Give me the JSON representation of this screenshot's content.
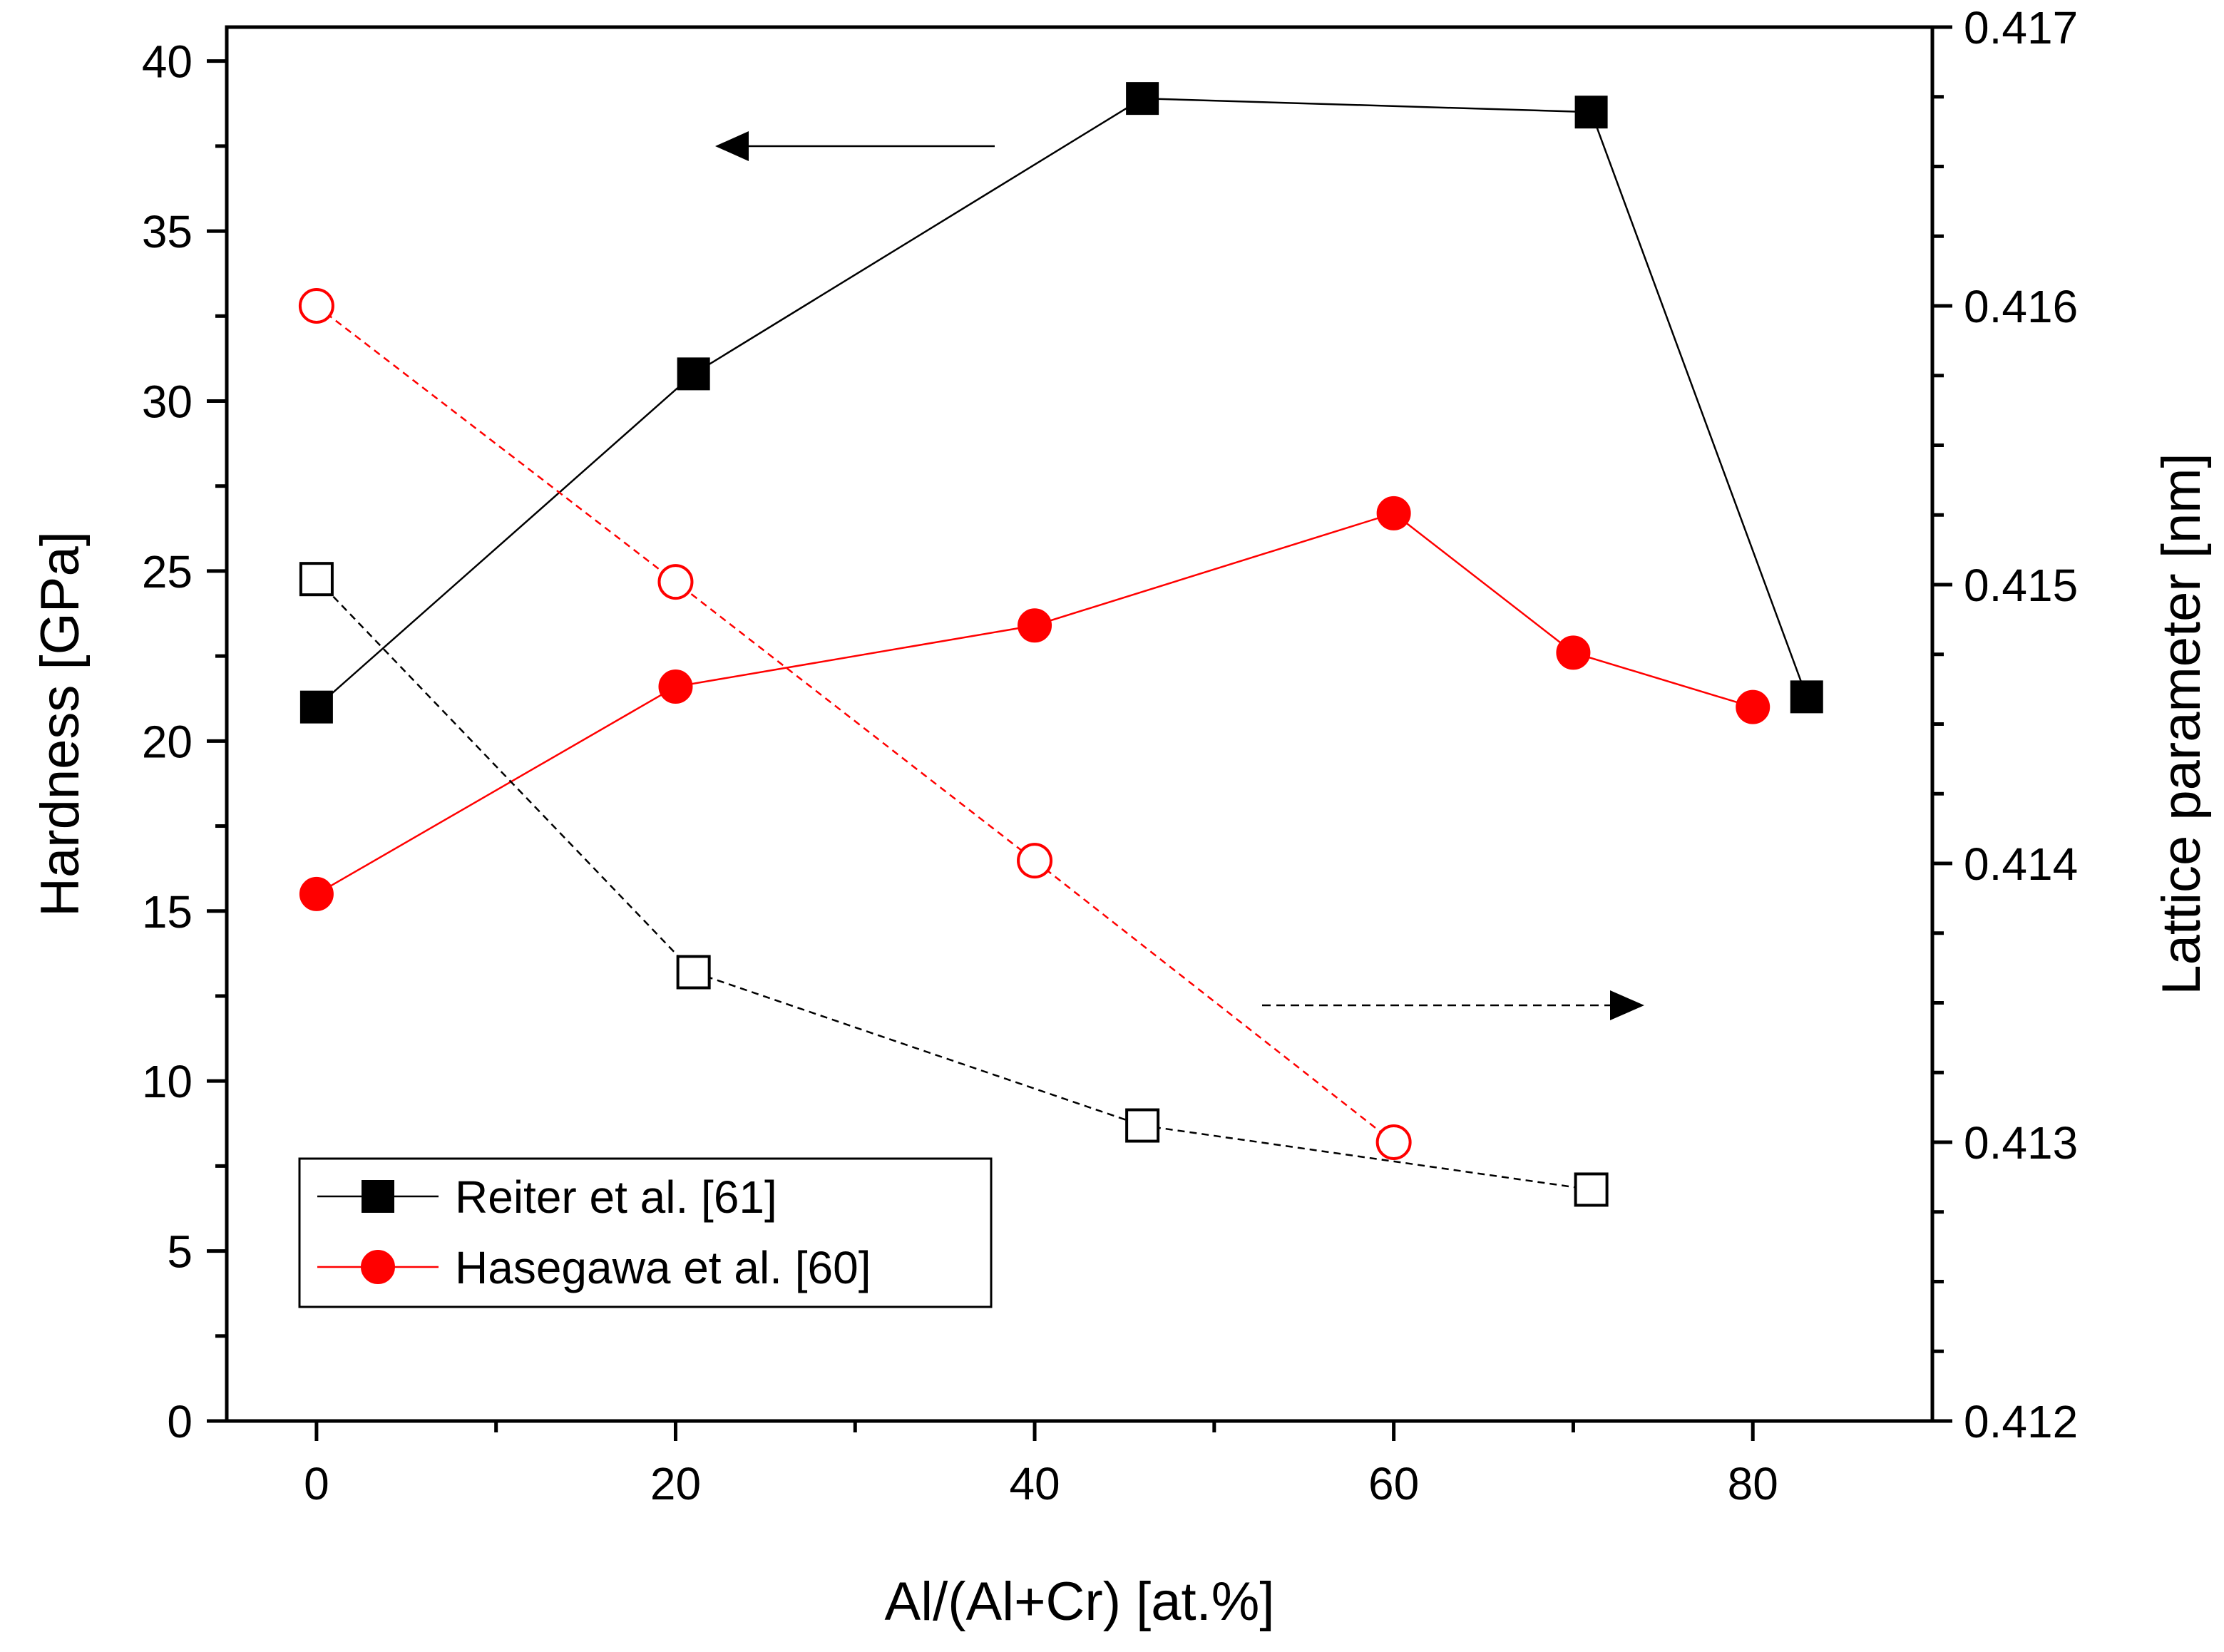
{
  "chart_data": {
    "type": "line",
    "xlabel": "Al/(Al+Cr) [at.%]",
    "ylabel": "Hardness [GPa]",
    "y2label": "Lattice parameter [nm]",
    "xlim": [
      -5,
      90
    ],
    "ylim": [
      0,
      41
    ],
    "y2lim": [
      0.412,
      0.417
    ],
    "xticks": [
      0,
      20,
      40,
      60,
      80
    ],
    "yticks": [
      0,
      5,
      10,
      15,
      20,
      25,
      30,
      35,
      40
    ],
    "y2ticks": [
      0.412,
      0.413,
      0.414,
      0.415,
      0.416,
      0.417
    ],
    "y2tick_labels": [
      "0.412",
      "0.413",
      "0.414",
      "0.415",
      "0.416",
      "0.417"
    ],
    "legend_position": "bottom-left",
    "series": [
      {
        "name": "Reiter et al. [61]",
        "quantity": "hardness",
        "axis": "left",
        "color": "#000000",
        "marker": "square",
        "filled": true,
        "dashed": false,
        "x": [
          0,
          21,
          46,
          71,
          83
        ],
        "values": [
          21.0,
          30.8,
          38.9,
          38.5,
          21.3
        ]
      },
      {
        "name": "Hasegawa et al. [60]",
        "quantity": "hardness",
        "axis": "left",
        "color": "#ff0000",
        "marker": "circle",
        "filled": true,
        "dashed": false,
        "x": [
          0,
          20,
          40,
          60,
          70,
          80
        ],
        "values": [
          15.5,
          21.6,
          23.4,
          26.7,
          22.6,
          21.0
        ]
      },
      {
        "name": "Reiter et al. [61]",
        "quantity": "lattice parameter",
        "axis": "right",
        "color": "#000000",
        "marker": "square",
        "filled": false,
        "dashed": true,
        "x": [
          0,
          21,
          46,
          71
        ],
        "values": [
          0.41502,
          0.41361,
          0.41306,
          0.41283
        ]
      },
      {
        "name": "Hasegawa et al. [60]",
        "quantity": "lattice parameter",
        "axis": "right",
        "color": "#ff0000",
        "marker": "circle",
        "filled": false,
        "dashed": true,
        "x": [
          0,
          20,
          40,
          60
        ],
        "values": [
          0.416,
          0.41501,
          0.41401,
          0.413
        ]
      }
    ],
    "annotations": [
      {
        "kind": "arrow",
        "direction": "left",
        "dashed": false,
        "refers_to_axis": "left",
        "meaning": "hardness"
      },
      {
        "kind": "arrow",
        "direction": "right",
        "dashed": true,
        "refers_to_axis": "right",
        "meaning": "lattice parameter"
      }
    ]
  }
}
